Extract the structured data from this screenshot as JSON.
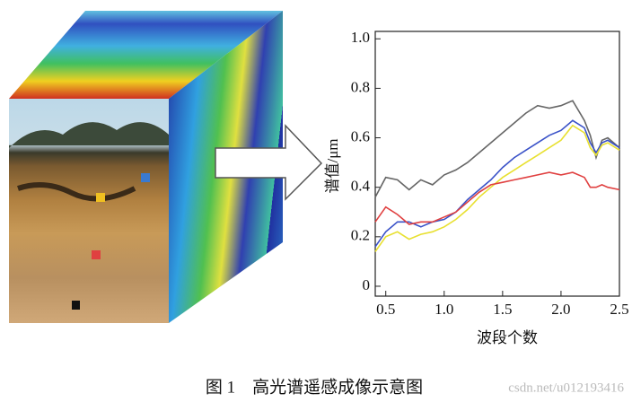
{
  "chart_data": {
    "type": "line",
    "x_label": "波段个数",
    "y_label": "谱值/μm",
    "x": [
      0.41,
      0.5,
      0.6,
      0.7,
      0.8,
      0.9,
      1.0,
      1.1,
      1.2,
      1.3,
      1.4,
      1.5,
      1.6,
      1.7,
      1.8,
      1.9,
      2.0,
      2.1,
      2.2,
      2.25,
      2.3,
      2.35,
      2.4,
      2.5
    ],
    "series": [
      {
        "color": "#666666",
        "values": [
          0.36,
          0.44,
          0.43,
          0.39,
          0.43,
          0.41,
          0.45,
          0.47,
          0.5,
          0.54,
          0.58,
          0.62,
          0.66,
          0.7,
          0.73,
          0.72,
          0.73,
          0.75,
          0.67,
          0.61,
          0.52,
          0.59,
          0.6,
          0.56
        ]
      },
      {
        "color": "#3a52c8",
        "values": [
          0.16,
          0.22,
          0.26,
          0.26,
          0.24,
          0.26,
          0.27,
          0.3,
          0.35,
          0.39,
          0.43,
          0.48,
          0.52,
          0.55,
          0.58,
          0.61,
          0.63,
          0.67,
          0.64,
          0.58,
          0.54,
          0.58,
          0.59,
          0.56
        ]
      },
      {
        "color": "#e8e030",
        "values": [
          0.14,
          0.2,
          0.22,
          0.19,
          0.21,
          0.22,
          0.24,
          0.27,
          0.31,
          0.36,
          0.4,
          0.44,
          0.47,
          0.5,
          0.53,
          0.56,
          0.59,
          0.65,
          0.62,
          0.56,
          0.53,
          0.57,
          0.58,
          0.55
        ]
      },
      {
        "color": "#e04040",
        "values": [
          0.26,
          0.32,
          0.29,
          0.25,
          0.26,
          0.26,
          0.28,
          0.3,
          0.34,
          0.38,
          0.41,
          0.42,
          0.43,
          0.44,
          0.45,
          0.46,
          0.45,
          0.46,
          0.44,
          0.4,
          0.4,
          0.41,
          0.4,
          0.39
        ]
      }
    ],
    "xlim": [
      0.41,
      2.5
    ],
    "ylim": [
      -0.04,
      1.03
    ],
    "xticks": [
      0.5,
      {
        "value": 1.0,
        "label": "1.0"
      },
      1.5,
      {
        "value": 2.0,
        "label": "2.0"
      },
      2.5
    ],
    "yticks": [
      0,
      0.2,
      0.4,
      0.6,
      0.8,
      {
        "value": 1.0,
        "label": "1.0"
      }
    ]
  },
  "caption": "图 1　高光谱遥感成像示意图",
  "watermark": "csdn.net/u012193416"
}
